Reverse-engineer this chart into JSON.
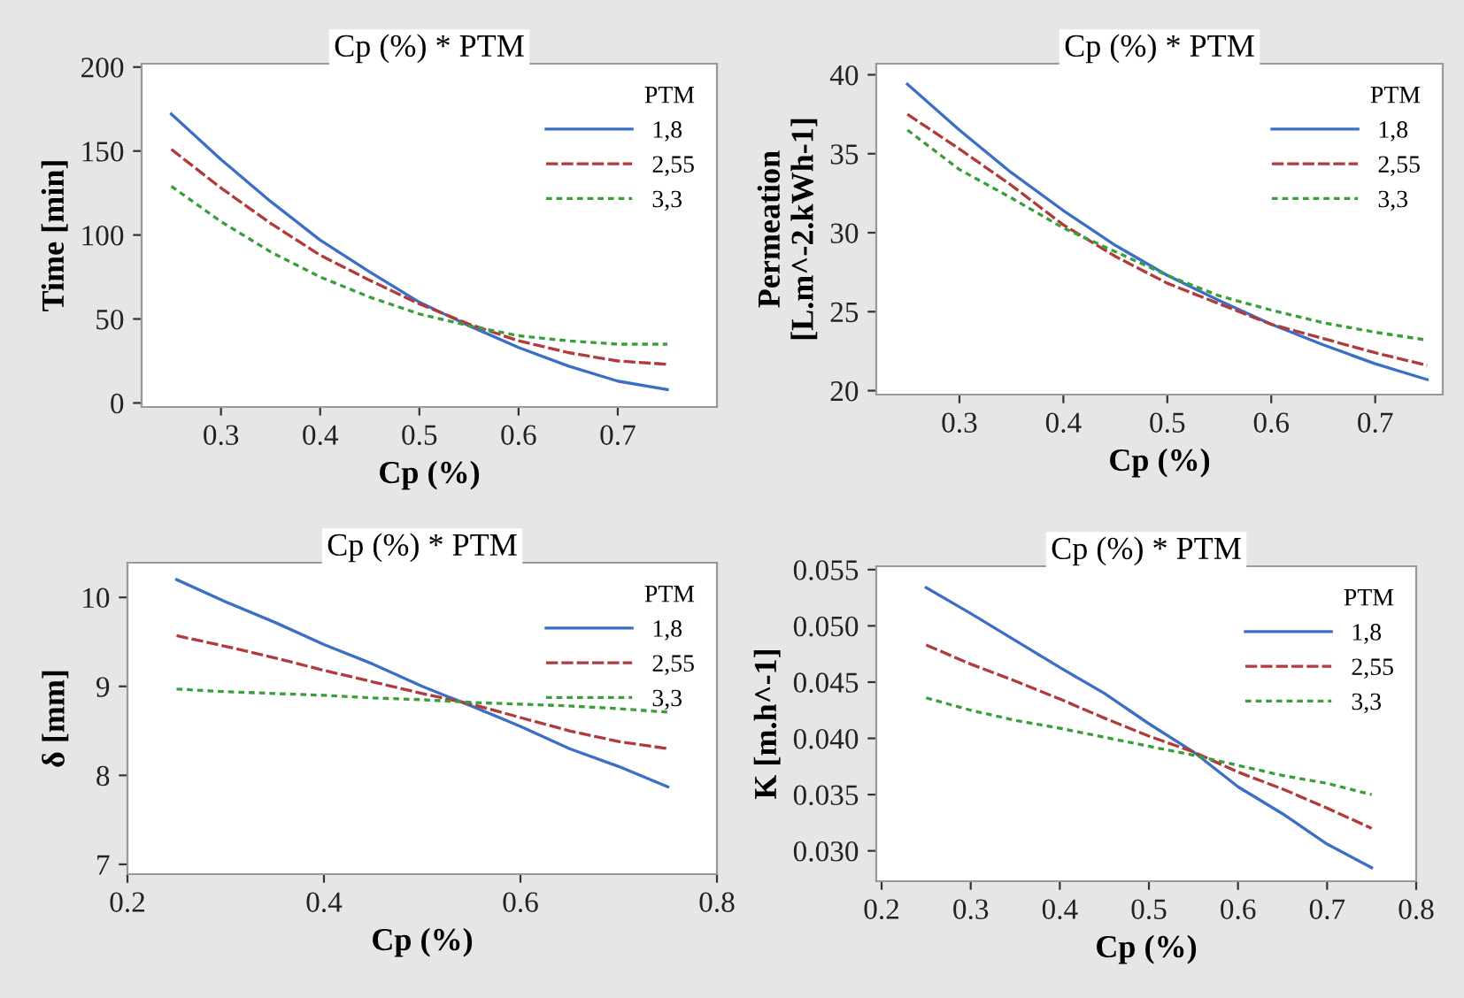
{
  "chart_data": [
    {
      "type": "line",
      "title": "Cp (%) * PTM",
      "xlabel": "Cp (%)",
      "ylabel": "Time [min]",
      "legend_title": "PTM",
      "legend": "top right",
      "grid": false,
      "x": [
        0.25,
        0.3,
        0.35,
        0.4,
        0.45,
        0.5,
        0.55,
        0.6,
        0.65,
        0.7,
        0.75
      ],
      "xlim": [
        0.22,
        0.8
      ],
      "xticks": [
        0.3,
        0.4,
        0.5,
        0.6,
        0.7
      ],
      "ylim": [
        -2.4,
        202
      ],
      "yticks": [
        0,
        50,
        100,
        150,
        200
      ],
      "series": [
        {
          "name": "1,8",
          "color": "#3b6fc6",
          "line_style": "solid",
          "values": [
            172,
            145,
            120,
            97,
            78,
            60,
            46,
            33,
            22,
            13,
            8
          ]
        },
        {
          "name": "2,55",
          "color": "#b23a3a",
          "line_style": "dashed",
          "values": [
            151,
            128,
            107,
            88,
            73,
            59,
            47,
            37,
            30,
            25,
            23
          ]
        },
        {
          "name": "3,3",
          "color": "#3a9e3a",
          "line_style": "dotted",
          "values": [
            129,
            108,
            90,
            75,
            63,
            53,
            46,
            40,
            37,
            35,
            35
          ]
        }
      ]
    },
    {
      "type": "line",
      "title": "Cp (%) * PTM",
      "xlabel": "Cp (%)",
      "ylabel": "Permeation\n[L.m^-2.kWh-1]",
      "legend_title": "PTM",
      "legend": "top right",
      "grid": false,
      "x": [
        0.25,
        0.3,
        0.35,
        0.4,
        0.45,
        0.5,
        0.55,
        0.6,
        0.65,
        0.7,
        0.75
      ],
      "xlim": [
        0.22,
        0.765
      ],
      "xticks": [
        0.3,
        0.4,
        0.5,
        0.6,
        0.7
      ],
      "ylim": [
        19.75,
        40.7
      ],
      "yticks": [
        20,
        25,
        30,
        35,
        40
      ],
      "series": [
        {
          "name": "1,8",
          "color": "#3b6fc6",
          "line_style": "solid",
          "values": [
            39.4,
            36.5,
            33.8,
            31.4,
            29.2,
            27.3,
            25.7,
            24.2,
            22.9,
            21.7,
            20.7
          ]
        },
        {
          "name": "2,55",
          "color": "#b23a3a",
          "line_style": "dashed",
          "values": [
            37.5,
            35.3,
            33.0,
            30.5,
            28.5,
            26.8,
            25.5,
            24.2,
            23.3,
            22.4,
            21.6
          ]
        },
        {
          "name": "3,3",
          "color": "#3a9e3a",
          "line_style": "dotted",
          "values": [
            36.5,
            34.0,
            32.2,
            30.3,
            28.8,
            27.3,
            26.0,
            25.1,
            24.3,
            23.7,
            23.2
          ]
        }
      ]
    },
    {
      "type": "line",
      "title": "Cp (%) * PTM",
      "xlabel": "Cp (%)",
      "ylabel": "δ [mm]",
      "legend_title": "PTM",
      "legend": "top right",
      "grid": false,
      "x": [
        0.25,
        0.3,
        0.35,
        0.4,
        0.45,
        0.5,
        0.55,
        0.6,
        0.65,
        0.7,
        0.75
      ],
      "xlim": [
        0.2,
        0.8
      ],
      "xticks": [
        0.2,
        0.4,
        0.6,
        0.8
      ],
      "ylim": [
        6.89,
        10.39
      ],
      "yticks": [
        7,
        8,
        9,
        10
      ],
      "series": [
        {
          "name": "1,8",
          "color": "#3b6fc6",
          "line_style": "solid",
          "values": [
            10.2,
            9.95,
            9.72,
            9.47,
            9.25,
            9.0,
            8.78,
            8.55,
            8.3,
            8.1,
            7.87
          ]
        },
        {
          "name": "2,55",
          "color": "#b23a3a",
          "line_style": "dashed",
          "values": [
            9.57,
            9.45,
            9.32,
            9.18,
            9.05,
            8.92,
            8.8,
            8.65,
            8.5,
            8.38,
            8.3
          ]
        },
        {
          "name": "3,3",
          "color": "#3a9e3a",
          "line_style": "dotted",
          "values": [
            8.97,
            8.94,
            8.92,
            8.9,
            8.87,
            8.85,
            8.82,
            8.8,
            8.78,
            8.75,
            8.71
          ]
        }
      ]
    },
    {
      "type": "line",
      "title": "Cp (%) * PTM",
      "xlabel": "Cp (%)",
      "ylabel": "K [m.h^-1]",
      "legend_title": "PTM",
      "legend": "top right",
      "grid": false,
      "x": [
        0.25,
        0.3,
        0.35,
        0.4,
        0.45,
        0.5,
        0.55,
        0.6,
        0.65,
        0.7,
        0.75
      ],
      "xlim": [
        0.194,
        0.8
      ],
      "xticks": [
        0.2,
        0.3,
        0.4,
        0.5,
        0.6,
        0.7,
        0.8
      ],
      "ylim": [
        0.0273,
        0.0553
      ],
      "yticks": [
        {
          "value": 0.03,
          "label": "0.030"
        },
        0.035,
        {
          "value": 0.04,
          "label": "0.040"
        },
        0.045,
        {
          "value": 0.05,
          "label": "0.050"
        },
        0.055
      ],
      "series": [
        {
          "name": "1,8",
          "color": "#3b6fc6",
          "line_style": "solid",
          "values": [
            0.0534,
            0.0511,
            0.0487,
            0.0463,
            0.044,
            0.0413,
            0.0388,
            0.0357,
            0.0333,
            0.0306,
            0.0285
          ]
        },
        {
          "name": "2,55",
          "color": "#b23a3a",
          "line_style": "dashed",
          "values": [
            0.0483,
            0.0466,
            0.0451,
            0.0435,
            0.0418,
            0.0402,
            0.0388,
            0.037,
            0.0355,
            0.0338,
            0.032
          ]
        },
        {
          "name": "3,3",
          "color": "#3a9e3a",
          "line_style": "dotted",
          "values": [
            0.0436,
            0.0425,
            0.0416,
            0.0409,
            0.0401,
            0.0393,
            0.0385,
            0.0376,
            0.0367,
            0.036,
            0.035
          ]
        }
      ]
    }
  ]
}
